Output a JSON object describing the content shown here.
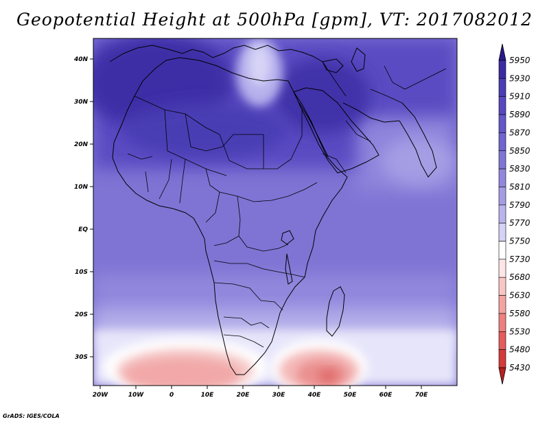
{
  "title": "Geopotential Height at 500hPa [gpm], VT: 2017082012",
  "credit": "GrADS: IGES/COLA",
  "lat_labels": [
    "40N",
    "30N",
    "20N",
    "10N",
    "EQ",
    "10S",
    "20S",
    "30S"
  ],
  "lon_labels": [
    "20W",
    "10W",
    "0",
    "10E",
    "20E",
    "30E",
    "40E",
    "50E",
    "60E",
    "70E"
  ],
  "colorbar": {
    "levels": [
      "5950",
      "5930",
      "5910",
      "5890",
      "5870",
      "5850",
      "5830",
      "5810",
      "5790",
      "5770",
      "5750",
      "5730",
      "5680",
      "5630",
      "5580",
      "5530",
      "5480",
      "5430"
    ],
    "colors": [
      "#2a1a8c",
      "#3a2ba3",
      "#4a3db5",
      "#5848c0",
      "#6457c8",
      "#7165cf",
      "#8076d6",
      "#9188dd",
      "#a49de4",
      "#b9b4ec",
      "#d4d2f5",
      "#ffffff",
      "#fde6e6",
      "#f9c6c6",
      "#f4a3a3",
      "#ee8080",
      "#e55c5c",
      "#d43b3b",
      "#b82020"
    ]
  },
  "colors": {
    "low_lat_purple": "#7f74d4",
    "saharan_high": "#3c2ea6",
    "southern_low": "#f2a8a8"
  }
}
